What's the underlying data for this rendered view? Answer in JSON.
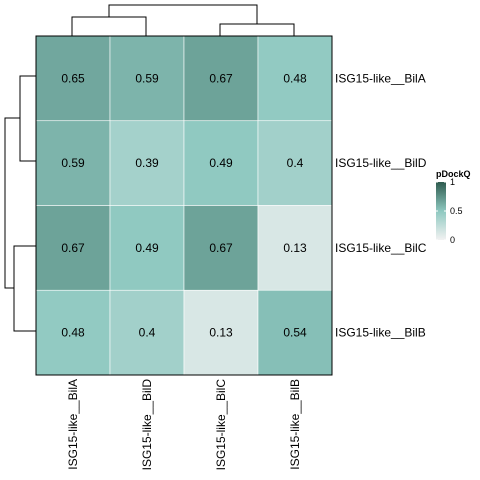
{
  "chart_data": {
    "type": "heatmap",
    "rows": [
      "ISG15-like__BilA",
      "ISG15-like__BilD",
      "ISG15-like__BilC",
      "ISG15-like__BilB"
    ],
    "columns": [
      "ISG15-like__BilA",
      "ISG15-like__BilD",
      "ISG15-like__BilC",
      "ISG15-like__BilB"
    ],
    "values": [
      [
        0.65,
        0.59,
        0.67,
        0.48
      ],
      [
        0.59,
        0.39,
        0.49,
        0.4
      ],
      [
        0.67,
        0.49,
        0.67,
        0.13
      ],
      [
        0.48,
        0.4,
        0.13,
        0.54
      ]
    ],
    "cell_labels": [
      [
        "0.65",
        "0.59",
        "0.67",
        "0.48"
      ],
      [
        "0.59",
        "0.39",
        "0.49",
        "0.4"
      ],
      [
        "0.67",
        "0.49",
        "0.67",
        "0.13"
      ],
      [
        "0.48",
        "0.4",
        "0.13",
        "0.54"
      ]
    ],
    "color_scale": {
      "min": 0,
      "max": 1,
      "colors": [
        "#f2f2f2",
        "#8ec8c0",
        "#2e5b4e"
      ]
    },
    "legend": {
      "title": "pDockQ",
      "ticks": [
        "1",
        "0.5",
        "0"
      ],
      "tick_values": [
        1,
        0.5,
        0
      ],
      "placement": "right"
    },
    "row_dendrogram": true,
    "column_dendrogram": true
  }
}
